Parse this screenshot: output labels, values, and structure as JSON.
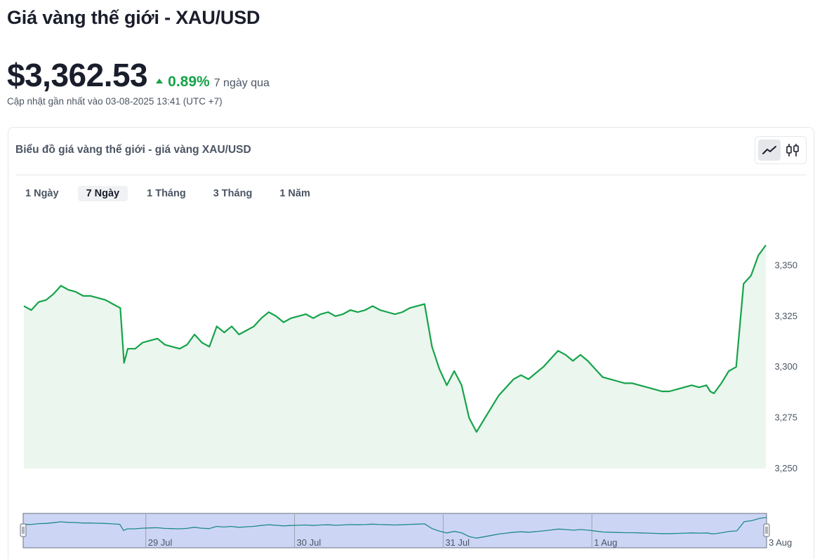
{
  "header": {
    "title": "Giá vàng thế giới - XAU/USD",
    "price": "$3,362.53",
    "change": "0.89%",
    "period": "7 ngày qua",
    "updated": "Cập nhật gần nhất vào 03-08-2025 13:41 (UTC +7)"
  },
  "chart_card": {
    "title": "Biểu đồ giá vàng thế giới - giá vàng XAU/USD",
    "ranges": [
      {
        "label": "1 Ngày",
        "active": false
      },
      {
        "label": "7 Ngày",
        "active": true
      },
      {
        "label": "1 Tháng",
        "active": false
      },
      {
        "label": "3 Tháng",
        "active": false
      },
      {
        "label": "1 Năm",
        "active": false
      }
    ],
    "view_modes": {
      "line_icon": "line-chart-icon",
      "candle_icon": "candlestick-icon",
      "active": "line"
    }
  },
  "colors": {
    "line": "#16a34a",
    "area": "#eaf6ee",
    "up": "#16a34a",
    "navigator_fill": "#cdd5f5",
    "navigator_line": "#1e8a8a"
  },
  "chart_data": {
    "type": "area",
    "title": "",
    "xlabel": "",
    "ylabel": "",
    "ylim": [
      3250,
      3365
    ],
    "y_ticks": [
      3250,
      3275,
      3300,
      3325,
      3350
    ],
    "y_tick_labels": [
      "3,250",
      "3,275",
      "3,300",
      "3,325",
      "3,350"
    ],
    "x_range": [
      0,
      100
    ],
    "navigator_labels": [
      {
        "x": 16.5,
        "label": "29 Jul"
      },
      {
        "x": 36.5,
        "label": "30 Jul"
      },
      {
        "x": 56.5,
        "label": "31 Jul"
      },
      {
        "x": 76.5,
        "label": "1 Aug"
      },
      {
        "x": 100,
        "label": "3 Aug"
      }
    ],
    "x": [
      0,
      1,
      2,
      3,
      4,
      5,
      6,
      7,
      8,
      9,
      10,
      11,
      12,
      13,
      13.5,
      14,
      15,
      16,
      17,
      18,
      19,
      20,
      21,
      22,
      23,
      24,
      25,
      26,
      27,
      28,
      29,
      30,
      31,
      32,
      33,
      34,
      35,
      36,
      37,
      38,
      39,
      40,
      41,
      42,
      43,
      44,
      45,
      46,
      47,
      48,
      49,
      50,
      51,
      52,
      53,
      54,
      55,
      56,
      57,
      58,
      59,
      60,
      61,
      62,
      63,
      64,
      65,
      66,
      67,
      68,
      69,
      70,
      71,
      72,
      73,
      74,
      75,
      76,
      77,
      78,
      79,
      80,
      81,
      82,
      83,
      84,
      85,
      86,
      87,
      88,
      89,
      90,
      91,
      92,
      92.5,
      93,
      94,
      95,
      96,
      97,
      98,
      99,
      100
    ],
    "values": [
      3330,
      3328,
      3332,
      3333,
      3336,
      3340,
      3338,
      3337,
      3335,
      3335,
      3334,
      3333,
      3331,
      3329,
      3302,
      3309,
      3309,
      3312,
      3313,
      3314,
      3311,
      3310,
      3309,
      3311,
      3316,
      3312,
      3310,
      3320,
      3317,
      3320,
      3316,
      3318,
      3320,
      3324,
      3327,
      3325,
      3322,
      3324,
      3325,
      3326,
      3324,
      3326,
      3327,
      3325,
      3326,
      3328,
      3327,
      3328,
      3330,
      3328,
      3327,
      3326,
      3327,
      3329,
      3330,
      3331,
      3310,
      3299,
      3291,
      3298,
      3291,
      3275,
      3268,
      3274,
      3280,
      3286,
      3290,
      3294,
      3296,
      3294,
      3297,
      3300,
      3304,
      3308,
      3306,
      3303,
      3306,
      3303,
      3299,
      3295,
      3294,
      3293,
      3292,
      3292,
      3291,
      3290,
      3289,
      3288,
      3288,
      3289,
      3290,
      3291,
      3290,
      3291,
      3288,
      3287,
      3292,
      3298,
      3300,
      3341,
      3345,
      3355,
      3360
    ]
  }
}
